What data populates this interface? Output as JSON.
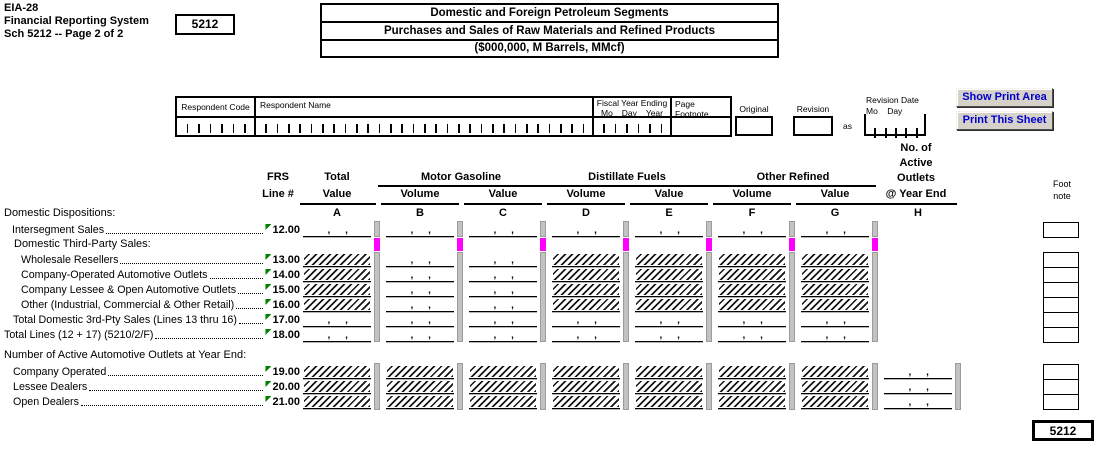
{
  "header": {
    "form_id": "EIA-28",
    "system": "Financial Reporting System",
    "schedule_page": "Sch 5212 -- Page 2 of 2",
    "schedule_number": "5212",
    "title_line1": "Domestic and Foreign Petroleum Segments",
    "title_line2": "Purchases and Sales of Raw Materials and Refined Products",
    "title_line3": "($000,000, M Barrels, MMcf)"
  },
  "buttons": {
    "show_print_area": "Show Print Area",
    "print_this_sheet": "Print This Sheet"
  },
  "respondent": {
    "code_label": "Respondent Code",
    "name_label": "Respondent Name",
    "fiscal_label": "Fiscal Year Ending",
    "mo": "Mo",
    "day": "Day",
    "year": "Year",
    "page_label": "Page",
    "footnote_label": "Footnote",
    "original_label": "Original",
    "revision_label": "Revision",
    "as_label": "as",
    "revision_date_label": "Revision Date",
    "rev_mo": "Mo",
    "rev_day": "Day"
  },
  "columns": {
    "frs1": "FRS",
    "frs2": "Line #",
    "total1": "Total",
    "total2": "Value",
    "groups": [
      {
        "label": "Motor Gasoline"
      },
      {
        "label": "Distillate Fuels"
      },
      {
        "label": "Other Refined"
      }
    ],
    "volume": "Volume",
    "value": "Value",
    "outlets_lines": [
      "No. of",
      "Active",
      "Outlets",
      "@ Year End"
    ],
    "letters": [
      "A",
      "B",
      "C",
      "D",
      "E",
      "F",
      "G",
      "H"
    ],
    "footnote1": "Foot",
    "footnote2": "note"
  },
  "grid": {
    "comma": ",",
    "rows": [
      {
        "kind": "section",
        "label": "Domestic Dispositions:"
      },
      {
        "kind": "data",
        "line": "12.00",
        "label": "Intersegment Sales",
        "cells": [
          "input",
          "input",
          "input",
          "input",
          "input",
          "input",
          "input",
          "empty"
        ]
      },
      {
        "kind": "section",
        "label": "Domestic Third-Party Sales:"
      },
      {
        "kind": "data",
        "line": "13.00",
        "label": "Wholesale Resellers",
        "cells": [
          "hatch",
          "input",
          "input",
          "hatch",
          "hatch",
          "hatch",
          "hatch",
          "empty"
        ]
      },
      {
        "kind": "data",
        "line": "14.00",
        "label": "Company-Operated Automotive Outlets",
        "cells": [
          "hatch",
          "input",
          "input",
          "hatch",
          "hatch",
          "hatch",
          "hatch",
          "empty"
        ]
      },
      {
        "kind": "data",
        "line": "15.00",
        "label": "Company Lessee & Open Automotive Outlets",
        "cells": [
          "hatch",
          "input",
          "input",
          "hatch",
          "hatch",
          "hatch",
          "hatch",
          "empty"
        ]
      },
      {
        "kind": "data",
        "line": "16.00",
        "label": "Other (Industrial, Commercial & Other Retail)",
        "cells": [
          "hatch",
          "input",
          "input",
          "hatch",
          "hatch",
          "hatch",
          "hatch",
          "empty"
        ]
      },
      {
        "kind": "data",
        "line": "17.00",
        "label": "Total Domestic 3rd-Pty Sales (Lines 13 thru 16)",
        "cells": [
          "input",
          "input",
          "input",
          "input",
          "input",
          "input",
          "input",
          "empty"
        ]
      },
      {
        "kind": "data",
        "line": "18.00",
        "label": "Total Lines (12 + 17) (5210/2/F)",
        "cells": [
          "input",
          "input",
          "input",
          "input",
          "input",
          "input",
          "input",
          "empty"
        ]
      },
      {
        "kind": "section",
        "label": "Number of Active Automotive Outlets at Year End:"
      },
      {
        "kind": "data",
        "line": "19.00",
        "label": "Company Operated",
        "cells": [
          "hatch",
          "hatch",
          "hatch",
          "hatch",
          "hatch",
          "hatch",
          "hatch",
          "input"
        ]
      },
      {
        "kind": "data",
        "line": "20.00",
        "label": "Lessee Dealers",
        "cells": [
          "hatch",
          "hatch",
          "hatch",
          "hatch",
          "hatch",
          "hatch",
          "hatch",
          "input"
        ]
      },
      {
        "kind": "data",
        "line": "21.00",
        "label": "Open Dealers",
        "cells": [
          "hatch",
          "hatch",
          "hatch",
          "hatch",
          "hatch",
          "hatch",
          "hatch",
          "input"
        ]
      }
    ]
  },
  "footer": {
    "schedule_number": "5212"
  },
  "colors": {
    "separator_bar": "#c2c2c2",
    "highlight_pink": "#ff00ff",
    "flag_green": "#008000",
    "button_text_blue": "#0000cc"
  }
}
